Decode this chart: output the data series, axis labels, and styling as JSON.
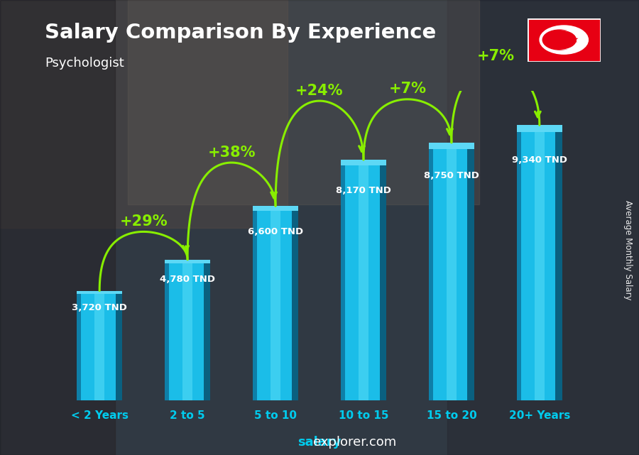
{
  "title": "Salary Comparison By Experience",
  "subtitle": "Psychologist",
  "categories": [
    "< 2 Years",
    "2 to 5",
    "5 to 10",
    "10 to 15",
    "15 to 20",
    "20+ Years"
  ],
  "values": [
    3720,
    4780,
    6600,
    8170,
    8750,
    9340
  ],
  "value_labels": [
    "3,720 TND",
    "4,780 TND",
    "6,600 TND",
    "8,170 TND",
    "8,750 TND",
    "9,340 TND"
  ],
  "pct_labels": [
    "+29%",
    "+38%",
    "+24%",
    "+7%",
    "+7%"
  ],
  "bar_color_main": "#1BBDE8",
  "bar_color_left": "#0E7FA8",
  "bar_color_right": "#0A6080",
  "bar_color_highlight": "#7AEEFF",
  "bar_top_color": "#5DD8F5",
  "bg_color_top": "#5a6a70",
  "bg_color_bottom": "#2a2a2a",
  "pct_color": "#88EE00",
  "arrow_color": "#88EE00",
  "title_color": "#FFFFFF",
  "subtitle_color": "#FFFFFF",
  "value_label_color": "#FFFFFF",
  "xtick_color": "#00CCEE",
  "watermark_salary": "salary",
  "watermark_explorer": "explorer.com",
  "watermark_color": "#00CCEE",
  "ylabel_text": "Average Monthly Salary",
  "ylabel_color": "#FFFFFF",
  "ylim": [
    0,
    10500
  ],
  "bar_width": 0.52
}
